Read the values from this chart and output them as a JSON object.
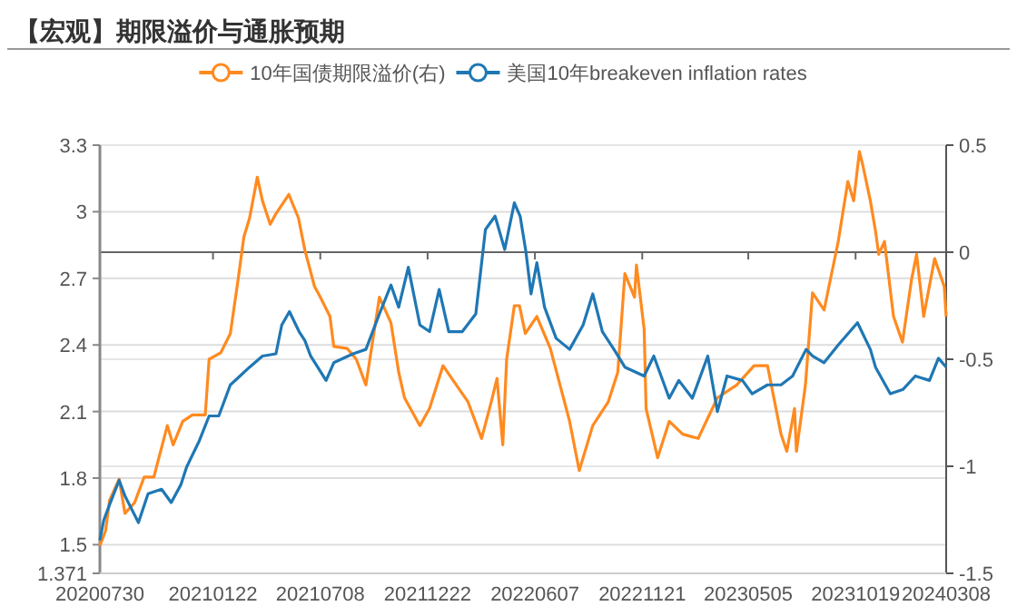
{
  "chart_data": {
    "type": "line",
    "title": "【宏观】期限溢价与通胀预期",
    "legend": "top",
    "grid": "y",
    "marker": "none",
    "line_style": "solid",
    "xlim": [
      "2020-07-30",
      "2024-03-08"
    ],
    "xticks": [
      {
        "value": "2020-07-30",
        "label": "20200730"
      },
      {
        "value": "2021-01-22",
        "label": "20210122"
      },
      {
        "value": "2021-07-08",
        "label": "20210708"
      },
      {
        "value": "2021-12-22",
        "label": "20211222"
      },
      {
        "value": "2022-06-07",
        "label": "20220607"
      },
      {
        "value": "2022-11-21",
        "label": "20221121"
      },
      {
        "value": "2023-05-05",
        "label": "20230505"
      },
      {
        "value": "2023-10-19",
        "label": "20231019"
      },
      {
        "value": "2024-03-08",
        "label": "20240308"
      }
    ],
    "ylim": [
      1.371,
      3.3
    ],
    "yticks": [
      1.371,
      1.5,
      1.8,
      2.1,
      2.4,
      2.7,
      3,
      3.3
    ],
    "y2lim": [
      -1.5,
      0.5
    ],
    "y2ticks": [
      -1.5,
      -1,
      -0.5,
      0,
      0.5
    ],
    "ref_lines": [
      {
        "axis": "y2",
        "value": 0,
        "color": "#666666"
      }
    ],
    "series": [
      {
        "name": "10年国债期限溢价(右)",
        "color": "#ff8a1f",
        "axis": "y2",
        "x": [
          "2020-07-30",
          "2020-08-08",
          "2020-08-14",
          "2020-08-29",
          "2020-09-07",
          "2020-09-22",
          "2020-10-07",
          "2020-10-22",
          "2020-11-12",
          "2020-11-21",
          "2020-12-06",
          "2020-12-21",
          "2021-01-10",
          "2021-01-16",
          "2021-02-03",
          "2021-02-18",
          "2021-03-02",
          "2021-03-11",
          "2021-03-20",
          "2021-04-01",
          "2021-04-09",
          "2021-04-21",
          "2021-04-30",
          "2021-05-20",
          "2021-06-04",
          "2021-06-14",
          "2021-06-29",
          "2021-07-08",
          "2021-07-23",
          "2021-07-29",
          "2021-08-19",
          "2021-09-02",
          "2021-09-17",
          "2021-10-08",
          "2021-10-26",
          "2021-11-07",
          "2021-11-16",
          "2021-12-10",
          "2021-12-25",
          "2022-01-15",
          "2022-02-23",
          "2022-03-16",
          "2022-03-31",
          "2022-04-09",
          "2022-04-18",
          "2022-04-24",
          "2022-05-06",
          "2022-05-14",
          "2022-05-23",
          "2022-06-10",
          "2022-07-01",
          "2022-07-31",
          "2022-08-15",
          "2022-09-05",
          "2022-09-29",
          "2022-10-14",
          "2022-10-25",
          "2022-11-09",
          "2022-11-12",
          "2022-11-24",
          "2022-11-27",
          "2022-12-15",
          "2023-01-02",
          "2023-01-23",
          "2023-02-16",
          "2023-03-18",
          "2023-04-17",
          "2023-05-14",
          "2023-06-04",
          "2023-06-25",
          "2023-07-04",
          "2023-07-16",
          "2023-07-19",
          "2023-08-02",
          "2023-08-13",
          "2023-08-31",
          "2023-09-22",
          "2023-10-07",
          "2023-10-16",
          "2023-10-25",
          "2023-10-30",
          "2023-11-11",
          "2023-11-19",
          "2023-11-24",
          "2023-12-03",
          "2023-12-17",
          "2023-12-31",
          "2024-01-14",
          "2024-01-22",
          "2024-02-02",
          "2024-02-19",
          "2024-03-05",
          "2024-03-08"
        ],
        "values": [
          -1.37,
          -1.3,
          -1.16,
          -1.06,
          -1.22,
          -1.17,
          -1.05,
          -1.05,
          -0.81,
          -0.9,
          -0.79,
          -0.76,
          -0.76,
          -0.5,
          -0.47,
          -0.38,
          -0.13,
          0.07,
          0.16,
          0.35,
          0.24,
          0.13,
          0.18,
          0.27,
          0.16,
          0.01,
          -0.16,
          -0.21,
          -0.3,
          -0.44,
          -0.45,
          -0.5,
          -0.62,
          -0.21,
          -0.33,
          -0.56,
          -0.68,
          -0.81,
          -0.73,
          -0.53,
          -0.7,
          -0.87,
          -0.7,
          -0.59,
          -0.9,
          -0.5,
          -0.25,
          -0.25,
          -0.38,
          -0.3,
          -0.45,
          -0.79,
          -1.02,
          -0.81,
          -0.7,
          -0.56,
          -0.1,
          -0.21,
          -0.06,
          -0.36,
          -0.73,
          -0.96,
          -0.79,
          -0.85,
          -0.87,
          -0.68,
          -0.62,
          -0.53,
          -0.53,
          -0.85,
          -0.93,
          -0.73,
          -0.93,
          -0.62,
          -0.19,
          -0.27,
          0.05,
          0.33,
          0.24,
          0.47,
          0.41,
          0.24,
          0.1,
          -0.01,
          0.05,
          -0.3,
          -0.42,
          -0.13,
          -0.01,
          -0.3,
          -0.03,
          -0.16,
          -0.3
        ]
      },
      {
        "name": "美国10年breakeven inflation rates",
        "color": "#1f77b4",
        "x": [
          "2020-07-30",
          "2020-08-05",
          "2020-08-14",
          "2020-08-29",
          "2020-09-07",
          "2020-09-28",
          "2020-10-13",
          "2020-11-03",
          "2020-11-18",
          "2020-12-03",
          "2020-12-12",
          "2021-01-01",
          "2021-01-16",
          "2021-01-31",
          "2021-02-18",
          "2021-03-05",
          "2021-03-20",
          "2021-04-09",
          "2021-04-30",
          "2021-05-09",
          "2021-05-21",
          "2021-06-05",
          "2021-06-14",
          "2021-06-23",
          "2021-07-17",
          "2021-07-29",
          "2021-08-28",
          "2021-09-17",
          "2021-10-08",
          "2021-10-26",
          "2021-11-07",
          "2021-11-22",
          "2021-12-10",
          "2021-12-25",
          "2022-01-09",
          "2022-01-24",
          "2022-02-14",
          "2022-03-07",
          "2022-03-22",
          "2022-04-06",
          "2022-04-21",
          "2022-05-06",
          "2022-05-15",
          "2022-05-24",
          "2022-06-01",
          "2022-06-10",
          "2022-06-22",
          "2022-07-10",
          "2022-07-31",
          "2022-08-21",
          "2022-09-05",
          "2022-09-20",
          "2022-10-08",
          "2022-10-25",
          "2022-11-24",
          "2022-12-09",
          "2023-01-02",
          "2023-01-17",
          "2023-02-07",
          "2023-03-03",
          "2023-03-18",
          "2023-04-02",
          "2023-04-26",
          "2023-05-11",
          "2023-06-04",
          "2023-06-25",
          "2023-07-13",
          "2023-08-03",
          "2023-08-13",
          "2023-08-31",
          "2023-09-22",
          "2023-10-22",
          "2023-11-11",
          "2023-11-19",
          "2023-12-12",
          "2024-01-01",
          "2024-01-20",
          "2024-02-11",
          "2024-02-25",
          "2024-03-08"
        ],
        "values": [
          1.52,
          1.61,
          1.68,
          1.79,
          1.72,
          1.6,
          1.73,
          1.75,
          1.69,
          1.77,
          1.85,
          1.97,
          2.08,
          2.08,
          2.22,
          2.26,
          2.3,
          2.35,
          2.36,
          2.49,
          2.55,
          2.46,
          2.42,
          2.35,
          2.24,
          2.32,
          2.36,
          2.38,
          2.54,
          2.67,
          2.57,
          2.75,
          2.49,
          2.46,
          2.65,
          2.46,
          2.46,
          2.54,
          2.92,
          2.98,
          2.83,
          3.04,
          2.98,
          2.82,
          2.63,
          2.77,
          2.57,
          2.43,
          2.38,
          2.49,
          2.63,
          2.46,
          2.38,
          2.3,
          2.26,
          2.35,
          2.16,
          2.24,
          2.16,
          2.35,
          2.1,
          2.26,
          2.24,
          2.18,
          2.22,
          2.22,
          2.26,
          2.38,
          2.35,
          2.32,
          2.4,
          2.5,
          2.38,
          2.3,
          2.18,
          2.2,
          2.26,
          2.24,
          2.34,
          2.3
        ]
      }
    ]
  }
}
